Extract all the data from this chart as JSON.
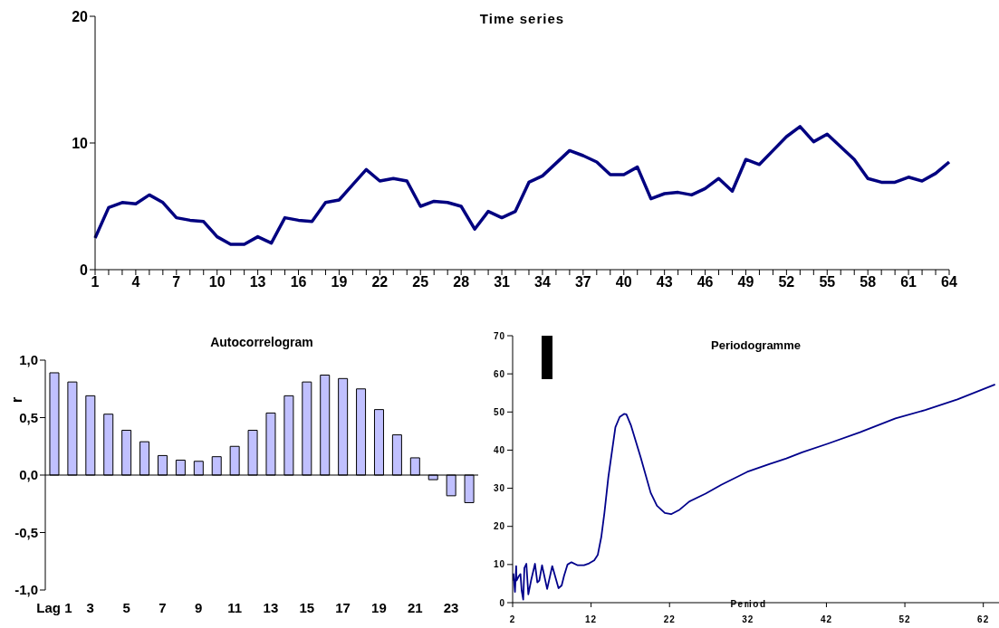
{
  "chart_data": [
    {
      "type": "line",
      "title": "Time series",
      "categories": [
        "1",
        null,
        null,
        "4",
        null,
        null,
        "7",
        null,
        null,
        "10",
        null,
        null,
        "13",
        null,
        null,
        "16",
        null,
        null,
        "19",
        null,
        null,
        "22",
        null,
        null,
        "25",
        null,
        null,
        "28",
        null,
        null,
        "31",
        null,
        null,
        "34",
        null,
        null,
        "37",
        null,
        null,
        "40",
        null,
        null,
        "43",
        null,
        null,
        "46",
        null,
        null,
        "49",
        null,
        null,
        "52",
        null,
        null,
        "55",
        null,
        null,
        "58",
        null,
        null,
        "61",
        null,
        null,
        "64"
      ],
      "series": [
        {
          "color": "#000080",
          "values": [
            2.5,
            4.9,
            5.3,
            5.2,
            5.9,
            5.3,
            4.1,
            3.9,
            3.8,
            2.6,
            2.0,
            2.0,
            2.6,
            2.1,
            4.1,
            3.9,
            3.8,
            5.3,
            5.5,
            6.7,
            7.9,
            7.0,
            7.2,
            7.0,
            5.0,
            5.4,
            5.3,
            5.0,
            3.2,
            4.6,
            4.1,
            4.6,
            6.9,
            7.4,
            8.4,
            9.4,
            9.0,
            8.5,
            7.5,
            7.5,
            8.1,
            5.6,
            6.0,
            6.1,
            5.9,
            6.4,
            7.2,
            6.2,
            8.7,
            8.3,
            9.4,
            10.5,
            11.3,
            10.1,
            10.7,
            9.7,
            8.7,
            7.2,
            6.9,
            6.9,
            7.3,
            7.0,
            7.6,
            8.5
          ]
        }
      ],
      "ylim": [
        0,
        20
      ],
      "yticks": [
        0,
        10,
        20
      ],
      "grid": false,
      "legend": false,
      "marker": "none",
      "line_style": "solid"
    },
    {
      "type": "bar",
      "title": "Autocorrelogram",
      "ylabel": "r",
      "categories": [
        "Lag 1",
        null,
        "3",
        null,
        "5",
        null,
        "7",
        null,
        "9",
        null,
        "11",
        null,
        "13",
        null,
        "15",
        null,
        "17",
        null,
        "19",
        null,
        "21",
        null,
        "23",
        null
      ],
      "values": [
        0.89,
        0.81,
        0.69,
        0.53,
        0.39,
        0.29,
        0.17,
        0.13,
        0.12,
        0.16,
        0.25,
        0.39,
        0.54,
        0.69,
        0.81,
        0.87,
        0.84,
        0.75,
        0.57,
        0.35,
        0.15,
        -0.04,
        -0.18,
        -0.24
      ],
      "color": "#c0c0ff",
      "ylim": [
        -1,
        1
      ],
      "yticks": [
        {
          "value": -1,
          "label": "-1,0"
        },
        {
          "value": -0.5,
          "label": "-0,5"
        },
        {
          "value": 0,
          "label": "0,0"
        },
        {
          "value": 0.5,
          "label": "0,5"
        },
        {
          "value": 1,
          "label": "1,0"
        }
      ],
      "legend": false
    },
    {
      "type": "line",
      "title": "Periodogramme",
      "xlabel": "Period",
      "x": [
        2.0,
        2.1,
        2.3,
        2.45,
        2.5,
        2.8,
        3.0,
        3.15,
        3.35,
        3.5,
        3.75,
        4.0,
        4.35,
        4.85,
        5.15,
        5.4,
        5.75,
        6.4,
        7.05,
        7.85,
        8.25,
        8.55,
        9.0,
        9.5,
        10.3,
        11.1,
        11.75,
        12.4,
        12.85,
        13.3,
        13.7,
        14.2,
        15.1,
        15.65,
        16.2,
        16.5,
        17.1,
        18.35,
        19.6,
        20.4,
        21.4,
        22.2,
        23.3,
        24.5,
        26.6,
        28.6,
        31.9,
        34.8,
        36.9,
        38.9,
        42.2,
        46.3,
        50.8,
        54.6,
        58.7,
        63.5
      ],
      "series": [
        {
          "color": "#00008b",
          "values": [
            5.8,
            7.5,
            2.8,
            9.6,
            5.8,
            7.0,
            7.5,
            3.2,
            0.8,
            9.1,
            10.2,
            2.2,
            5.8,
            10.2,
            5.3,
            5.8,
            9.8,
            3.6,
            9.6,
            3.8,
            4.5,
            7.0,
            10.0,
            10.6,
            9.8,
            9.8,
            10.3,
            11.1,
            12.5,
            17.2,
            23.5,
            32.9,
            46.0,
            48.7,
            49.5,
            49.4,
            46.4,
            37.9,
            28.8,
            25.4,
            23.5,
            23.2,
            24.4,
            26.5,
            28.6,
            30.9,
            34.3,
            36.4,
            37.8,
            39.4,
            41.7,
            44.7,
            48.3,
            50.5,
            53.3,
            57.2
          ]
        }
      ],
      "xlim": [
        2,
        64
      ],
      "xticks": [
        2,
        12,
        22,
        32,
        42,
        52,
        62
      ],
      "ylim": [
        0,
        70
      ],
      "yticks": [
        0,
        10,
        20,
        30,
        40,
        50,
        60,
        70
      ],
      "grid": false,
      "legend": false,
      "marker": "none",
      "line_style": "solid"
    }
  ]
}
